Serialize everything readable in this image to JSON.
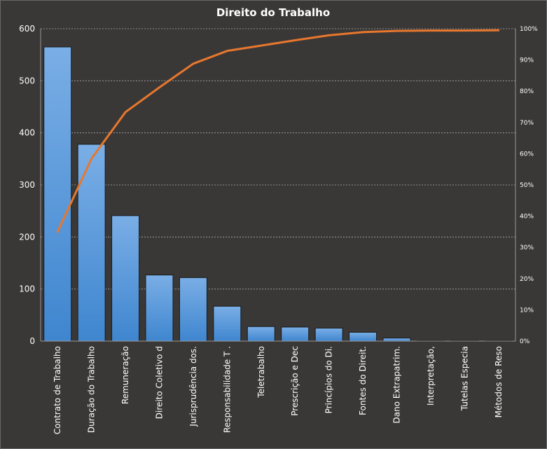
{
  "chart_data": {
    "type": "bar",
    "title": "Direito  do Trabalho",
    "categories": [
      "Contrato de Trabalho",
      "Duração do Trabalho",
      "Remuneração",
      "Direito Coletivo d",
      "Jurisprudência dos.",
      "Responsabilidade T .",
      "Teletrabalho",
      "Prescrição e Dec",
      "Princípios do Di.",
      "Fontes do Direit.",
      "Dano Extrapatrim.",
      "Interpretação,",
      "Tutelas Especia",
      "Métodos de Reso"
    ],
    "series": [
      {
        "type": "bar",
        "values": [
          565,
          378,
          241,
          127,
          122,
          67,
          28,
          27,
          25,
          17,
          6,
          1,
          1,
          1
        ]
      },
      {
        "type": "line",
        "axis": "secondary",
        "values": [
          35.0,
          58.4,
          73.3,
          81.2,
          88.8,
          92.9,
          94.6,
          96.3,
          97.9,
          98.9,
          99.3,
          99.4,
          99.4,
          99.5
        ]
      }
    ],
    "ylim": [
      0,
      600
    ],
    "yticks": [
      0,
      100,
      200,
      300,
      400,
      500,
      600
    ],
    "y2lim": [
      0,
      100
    ],
    "y2ticks": [
      "0%",
      "10%",
      "20%",
      "30%",
      "40%",
      "50%",
      "60%",
      "70%",
      "80%",
      "90%",
      "100%"
    ],
    "grid": true,
    "legend": "none",
    "colors": {
      "bar_top": "#7aaee6",
      "bar_bottom": "#3f86cf",
      "bar_edge": "#1a1a1a",
      "line": "#e8772e",
      "background": "#3a3836",
      "grid": "#bdbdbd"
    }
  }
}
